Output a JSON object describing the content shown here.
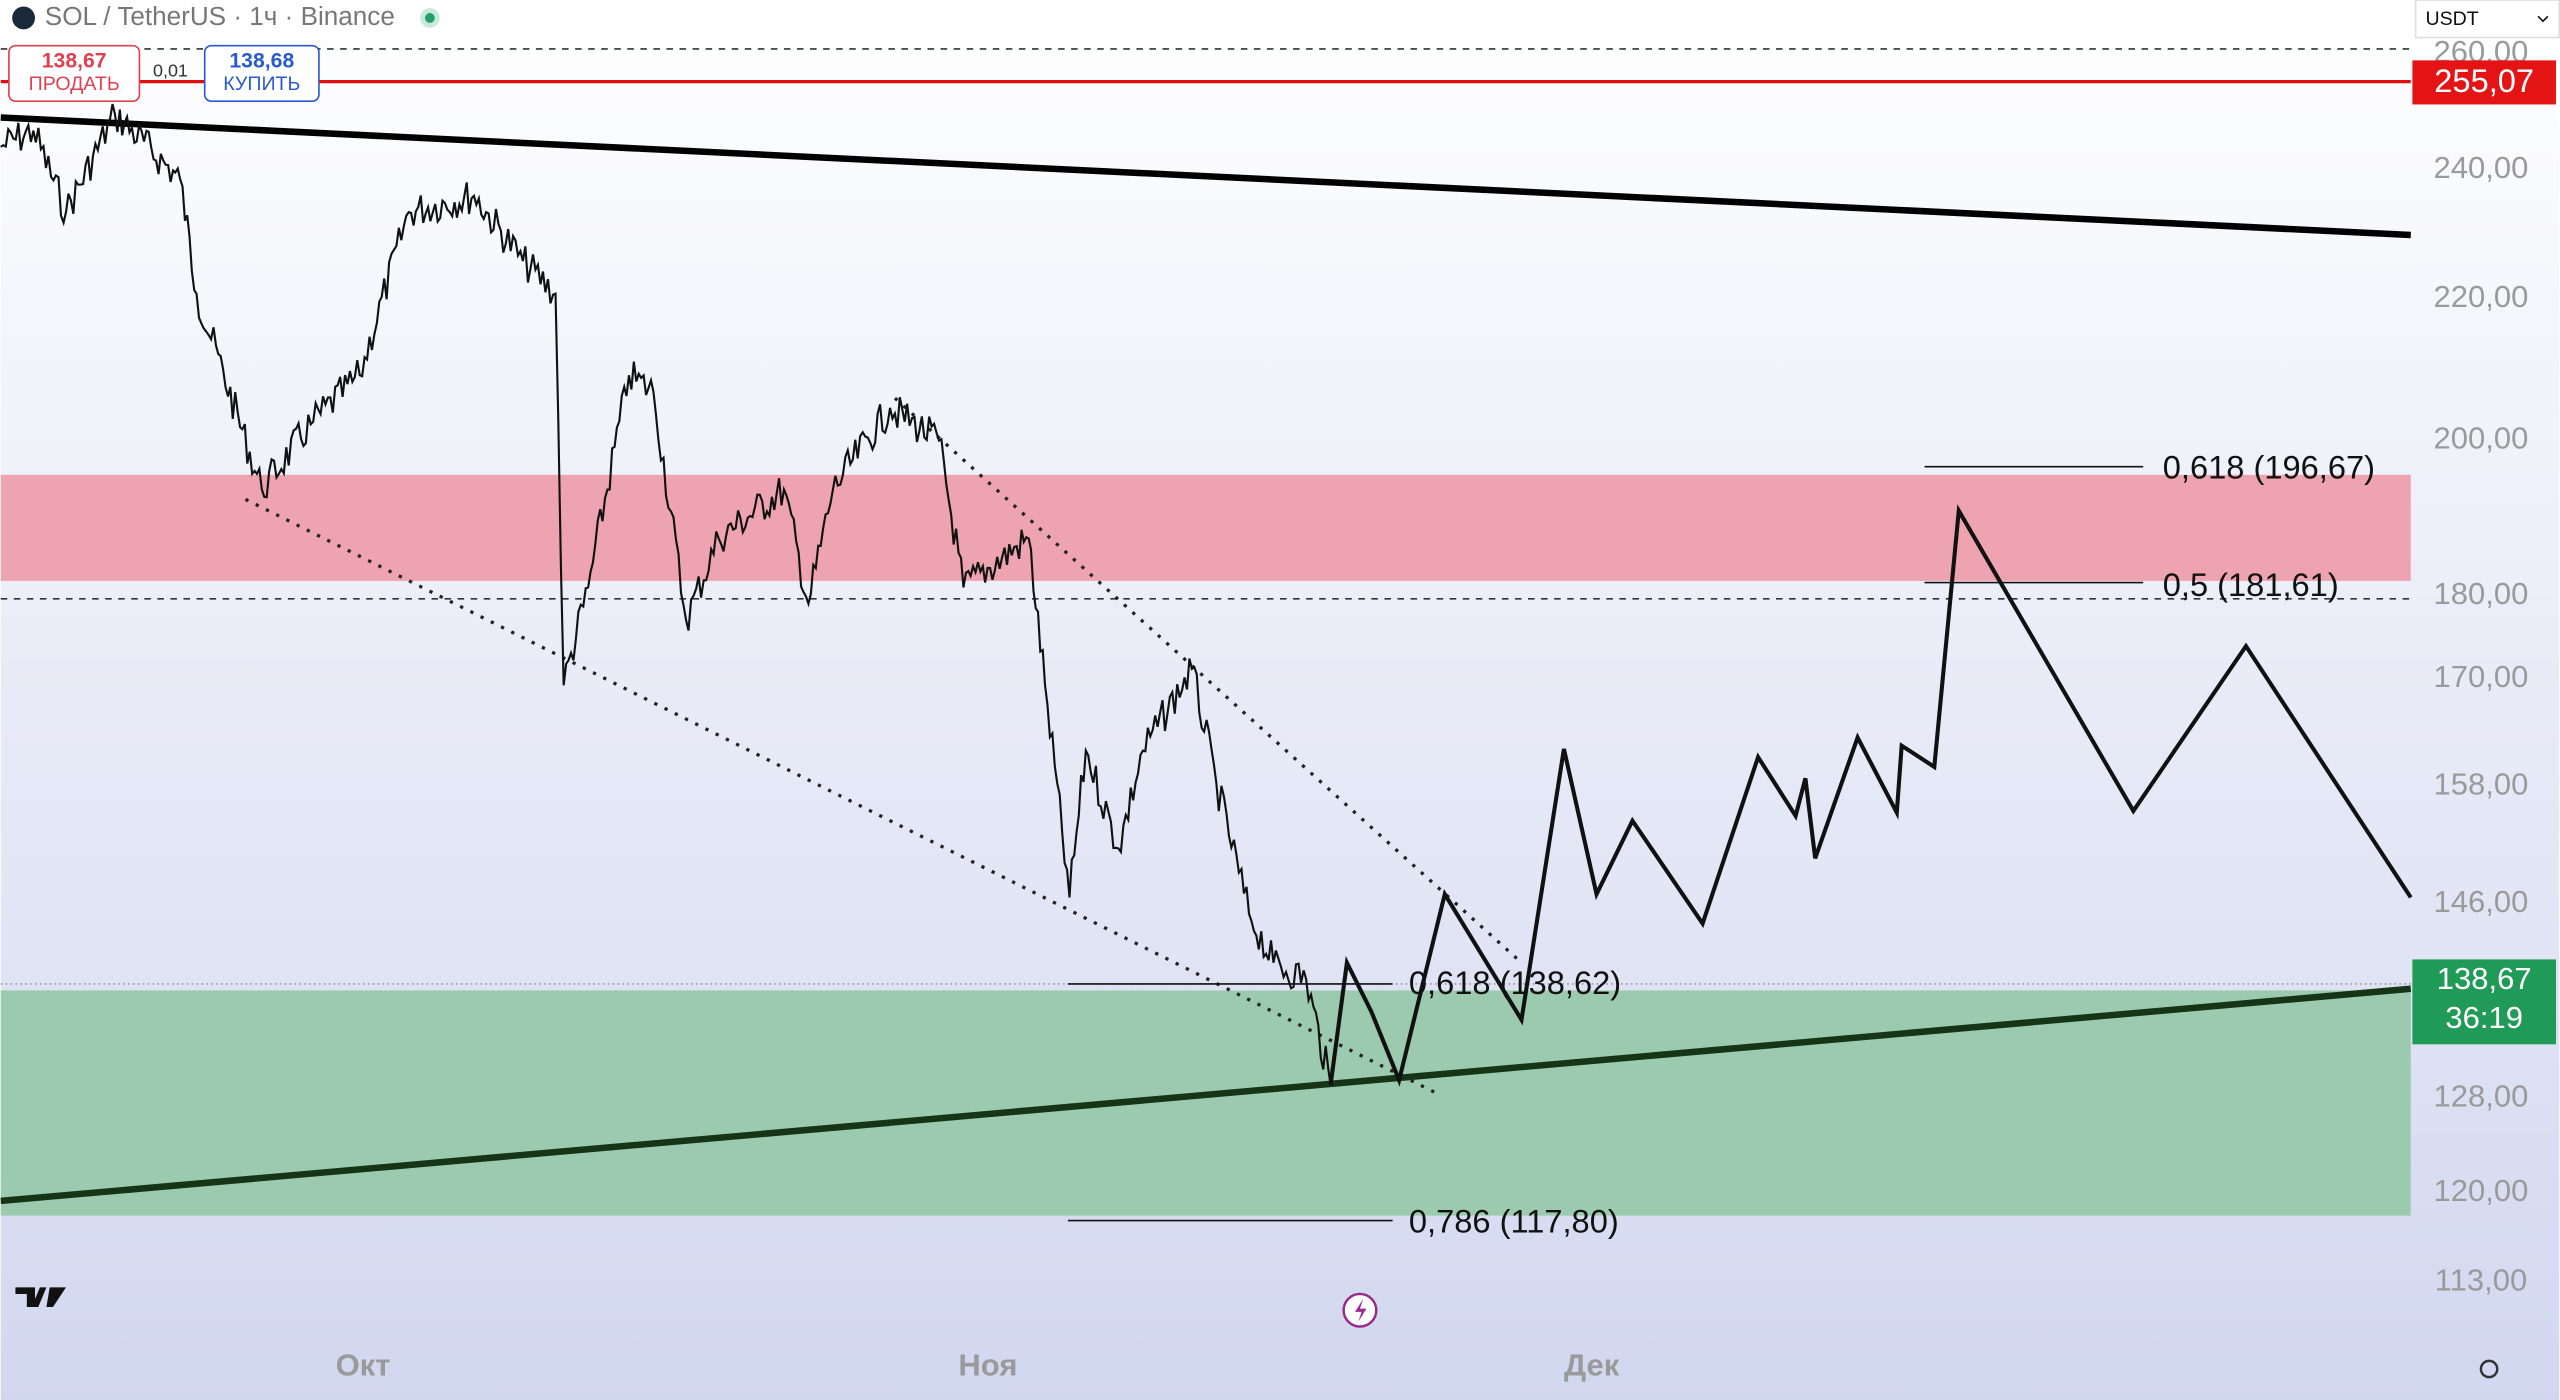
{
  "header": {
    "title": "SOL / TetherUS · 1ч · Binance"
  },
  "order": {
    "sell_price": "138,67",
    "sell_label": "ПРОДАТЬ",
    "spread": "0,01",
    "buy_price": "138,68",
    "buy_label": "КУПИТЬ"
  },
  "currency": "USDT",
  "price_axis": {
    "labels": [
      "260,00",
      "240,00",
      "220,00",
      "200,00",
      "180,00",
      "170,00",
      "158,00",
      "146,00",
      "128,00",
      "120,00",
      "113,00"
    ]
  },
  "badges": {
    "alert": "255,07",
    "last_price": "138,67",
    "countdown": "36:19"
  },
  "time_axis": [
    "Окт",
    "Ноя",
    "Дек"
  ],
  "fib_levels": [
    "0,618 (196,67)",
    "0,5 (181,61)",
    "0,618 (138,62)",
    "0,786 (117,80)"
  ]
}
